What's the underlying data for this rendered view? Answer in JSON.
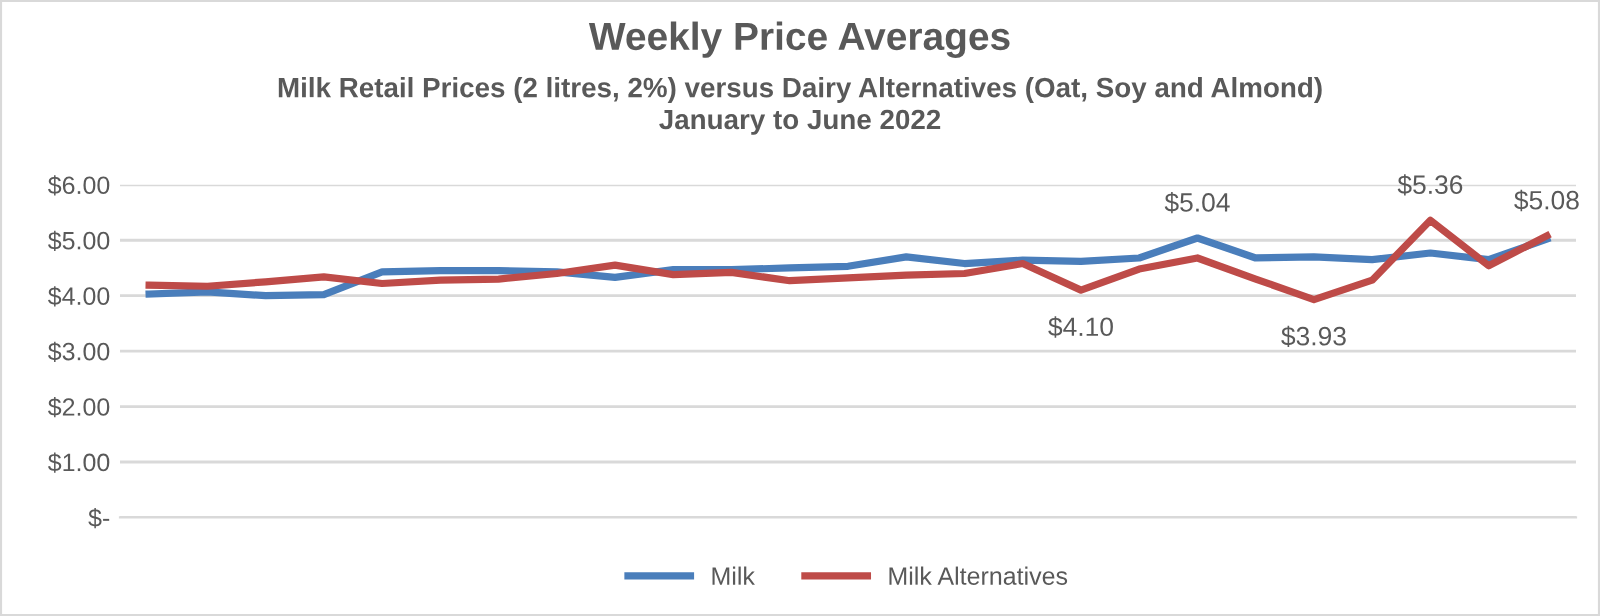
{
  "chart_data": {
    "type": "line",
    "title": "Weekly Price Averages",
    "subtitle": "Milk Retail Prices (2 litres, 2%) versus Dairy Alternatives (Oat, Soy and Almond)\nJanuary to June 2022",
    "categories": [
      null,
      null,
      null,
      null,
      null,
      null,
      null,
      null,
      null,
      null,
      null,
      null,
      null,
      null,
      null,
      null,
      null,
      null,
      null,
      null,
      null,
      null,
      null,
      null,
      null
    ],
    "series": [
      {
        "name": "Milk",
        "color": "#4a7ebb",
        "values": [
          4.03,
          4.07,
          4.0,
          4.02,
          4.43,
          4.45,
          4.45,
          4.43,
          4.33,
          4.47,
          4.47,
          4.5,
          4.53,
          4.7,
          4.58,
          4.64,
          4.62,
          4.68,
          5.04,
          4.68,
          4.7,
          4.65,
          4.77,
          4.65,
          5.02
        ],
        "value_labels": [
          null,
          null,
          null,
          null,
          null,
          null,
          null,
          null,
          null,
          null,
          null,
          null,
          null,
          null,
          null,
          null,
          null,
          null,
          "$5.04",
          null,
          null,
          null,
          null,
          null,
          null
        ]
      },
      {
        "name": "Milk Alternatives",
        "color": "#be4b48",
        "values": [
          4.19,
          4.17,
          4.25,
          4.34,
          4.22,
          4.28,
          4.3,
          4.4,
          4.55,
          4.38,
          4.42,
          4.27,
          4.32,
          4.37,
          4.4,
          4.58,
          4.1,
          4.48,
          4.68,
          4.3,
          3.93,
          4.28,
          5.36,
          4.54,
          5.08
        ],
        "value_labels": [
          null,
          null,
          null,
          null,
          null,
          null,
          null,
          null,
          null,
          null,
          null,
          null,
          null,
          null,
          null,
          null,
          "$4.10",
          null,
          null,
          null,
          "$3.93",
          null,
          "$5.36",
          null,
          "$5.08"
        ]
      }
    ],
    "ylim": [
      0,
      6
    ],
    "yticks": [
      {
        "value": 0,
        "label": "$-"
      },
      {
        "value": 1,
        "label": "$1.00"
      },
      {
        "value": 2,
        "label": "$2.00"
      },
      {
        "value": 3,
        "label": "$3.00"
      },
      {
        "value": 4,
        "label": "$4.00"
      },
      {
        "value": 5,
        "label": "$5.00"
      },
      {
        "value": 6,
        "label": "$6.00"
      }
    ],
    "grid": "y",
    "legend": "bottom",
    "line_style": "solid",
    "marker": "none"
  }
}
